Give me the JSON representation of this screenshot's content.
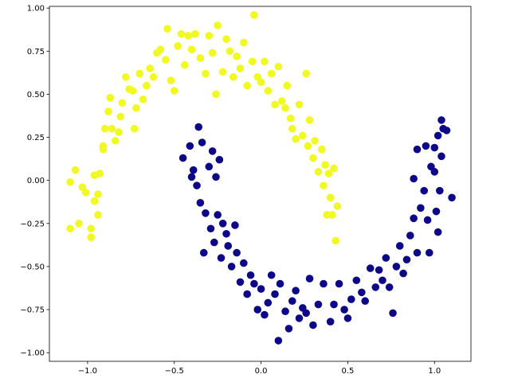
{
  "chart_data": {
    "type": "scatter",
    "xlim": [
      -1.22,
      1.21
    ],
    "ylim": [
      -1.05,
      1.01
    ],
    "xticks": [
      {
        "value": -1.0,
        "label": "−1.0"
      },
      {
        "value": -0.5,
        "label": "−0.5"
      },
      {
        "value": 0,
        "label": "0.0"
      },
      {
        "value": 0.5,
        "label": "0.5"
      },
      {
        "value": 1.0,
        "label": "1.0"
      }
    ],
    "yticks": [
      {
        "value": -1.0,
        "label": "−1.00"
      },
      {
        "value": -0.75,
        "label": "−0.75"
      },
      {
        "value": -0.5,
        "label": "−0.50"
      },
      {
        "value": -0.25,
        "label": "−0.25"
      },
      {
        "value": 0,
        "label": "0.00"
      },
      {
        "value": 0.25,
        "label": "0.25"
      },
      {
        "value": 0.5,
        "label": "0.50"
      },
      {
        "value": 0.75,
        "label": "0.75"
      },
      {
        "value": 1.0,
        "label": "1.00"
      }
    ],
    "series": [
      {
        "color": "#f0f921",
        "x": [
          -1.1,
          -1.1,
          -1.07,
          -1.05,
          -1.03,
          -1.01,
          -0.98,
          -0.98,
          -0.96,
          -0.96,
          -0.94,
          -0.94,
          -0.93,
          -0.91,
          -0.91,
          -0.9,
          -0.88,
          -0.87,
          -0.86,
          -0.84,
          -0.82,
          -0.81,
          -0.8,
          -0.78,
          -0.76,
          -0.74,
          -0.73,
          -0.72,
          -0.7,
          -0.68,
          -0.66,
          -0.64,
          -0.62,
          -0.6,
          -0.58,
          -0.55,
          -0.54,
          -0.52,
          -0.5,
          -0.48,
          -0.46,
          -0.44,
          -0.42,
          -0.4,
          -0.38,
          -0.35,
          -0.32,
          -0.3,
          -0.28,
          -0.26,
          -0.25,
          -0.22,
          -0.2,
          -0.18,
          -0.16,
          -0.14,
          -0.12,
          -0.1,
          -0.08,
          -0.05,
          -0.04,
          -0.02,
          0.0,
          0.02,
          0.04,
          0.06,
          0.08,
          0.1,
          0.12,
          0.14,
          0.15,
          0.17,
          0.18,
          0.2,
          0.22,
          0.24,
          0.26,
          0.27,
          0.28,
          0.3,
          0.31,
          0.33,
          0.35,
          0.36,
          0.37,
          0.38,
          0.39,
          0.4,
          0.41,
          0.42,
          0.43,
          0.44
        ],
        "y": [
          -0.01,
          -0.28,
          0.06,
          -0.25,
          -0.04,
          -0.07,
          -0.33,
          -0.28,
          -0.12,
          0.03,
          -0.2,
          -0.08,
          0.04,
          0.18,
          0.2,
          0.3,
          0.4,
          0.48,
          0.3,
          0.23,
          0.28,
          0.37,
          0.45,
          0.6,
          0.53,
          0.52,
          0.3,
          0.42,
          0.62,
          0.47,
          0.55,
          0.65,
          0.6,
          0.74,
          0.76,
          0.7,
          0.88,
          0.58,
          0.52,
          0.78,
          0.85,
          0.67,
          0.84,
          0.76,
          0.85,
          0.71,
          0.62,
          0.84,
          0.74,
          0.5,
          0.9,
          0.63,
          0.82,
          0.75,
          0.6,
          0.72,
          0.65,
          0.8,
          0.55,
          0.69,
          0.96,
          0.6,
          0.57,
          0.69,
          0.52,
          0.62,
          0.44,
          0.66,
          0.46,
          0.42,
          0.55,
          0.36,
          0.3,
          0.24,
          0.44,
          0.26,
          0.62,
          0.2,
          0.35,
          0.13,
          0.23,
          0.05,
          0.18,
          -0.03,
          0.09,
          -0.2,
          0.04,
          -0.1,
          -0.2,
          0.07,
          -0.35,
          -0.15
        ]
      },
      {
        "color": "#0d0887",
        "x": [
          -0.45,
          -0.41,
          -0.4,
          -0.39,
          -0.37,
          -0.36,
          -0.35,
          -0.34,
          -0.33,
          -0.32,
          -0.3,
          -0.29,
          -0.28,
          -0.27,
          -0.26,
          -0.25,
          -0.24,
          -0.23,
          -0.22,
          -0.2,
          -0.19,
          -0.17,
          -0.15,
          -0.14,
          -0.12,
          -0.1,
          -0.08,
          -0.06,
          -0.04,
          -0.02,
          0.0,
          0.02,
          0.04,
          0.06,
          0.08,
          0.1,
          0.11,
          0.14,
          0.16,
          0.18,
          0.2,
          0.22,
          0.24,
          0.26,
          0.28,
          0.3,
          0.33,
          0.36,
          0.4,
          0.42,
          0.45,
          0.48,
          0.5,
          0.52,
          0.55,
          0.58,
          0.6,
          0.63,
          0.66,
          0.68,
          0.7,
          0.72,
          0.74,
          0.76,
          0.78,
          0.8,
          0.82,
          0.84,
          0.86,
          0.88,
          0.9,
          0.92,
          0.94,
          0.96,
          0.97,
          0.98,
          1.0,
          1.01,
          1.02,
          1.03,
          1.04,
          1.05,
          1.07,
          1.1,
          0.88,
          0.9,
          0.95,
          1.0,
          1.02,
          1.04
        ],
        "y": [
          0.13,
          0.2,
          0.02,
          0.06,
          -0.03,
          0.31,
          -0.13,
          0.22,
          -0.42,
          -0.19,
          0.08,
          -0.28,
          0.17,
          -0.36,
          0.02,
          -0.2,
          0.12,
          -0.45,
          -0.25,
          -0.31,
          -0.38,
          -0.5,
          -0.26,
          -0.42,
          -0.59,
          -0.48,
          -0.66,
          -0.55,
          -0.6,
          -0.75,
          -0.63,
          -0.78,
          -0.71,
          -0.55,
          -0.66,
          -0.93,
          -0.6,
          -0.76,
          -0.86,
          -0.7,
          -0.64,
          -0.8,
          -0.74,
          -0.77,
          -0.57,
          -0.84,
          -0.72,
          -0.6,
          -0.82,
          -0.72,
          -0.6,
          -0.75,
          -0.8,
          -0.69,
          -0.58,
          -0.65,
          -0.7,
          -0.51,
          -0.62,
          -0.52,
          -0.58,
          -0.45,
          -0.62,
          -0.77,
          -0.5,
          -0.38,
          -0.54,
          -0.46,
          -0.32,
          -0.22,
          -0.42,
          -0.16,
          -0.06,
          -0.23,
          -0.42,
          0.08,
          0.05,
          -0.18,
          0.26,
          -0.06,
          0.14,
          0.3,
          0.29,
          -0.1,
          0.01,
          0.18,
          0.2,
          0.19,
          -0.3,
          0.35
        ]
      }
    ]
  }
}
